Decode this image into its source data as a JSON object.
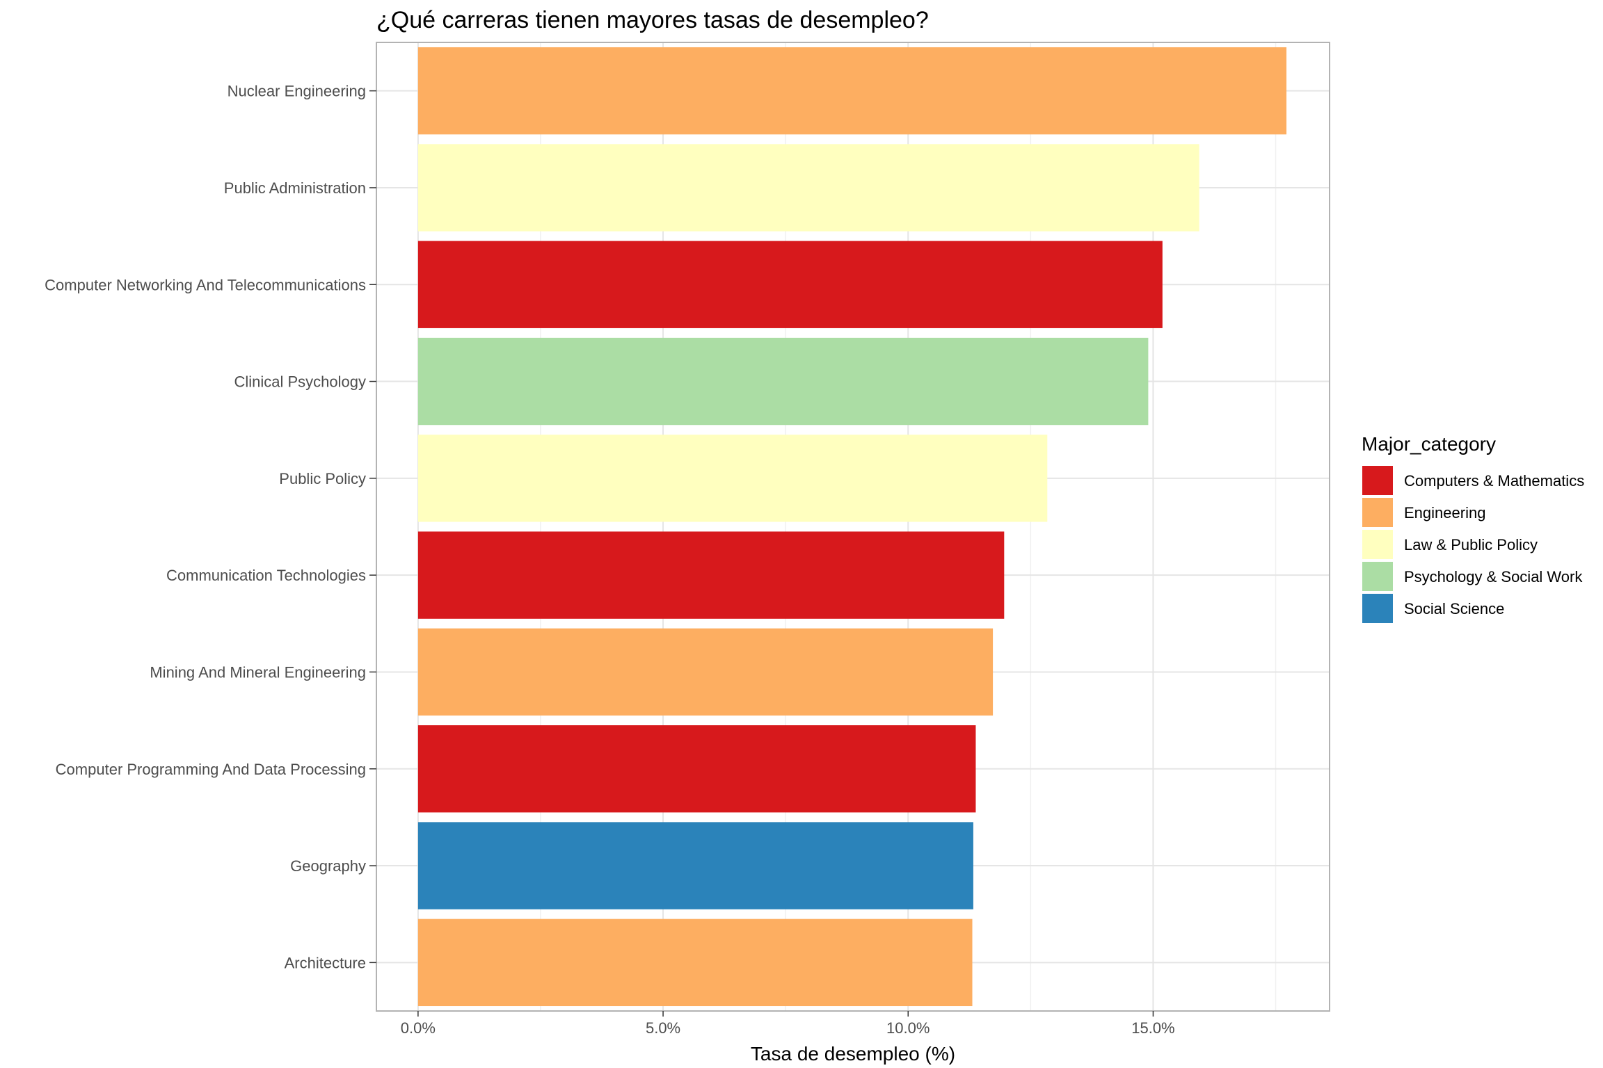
{
  "chart_data": {
    "type": "bar",
    "orientation": "horizontal",
    "title": "¿Qué carreras tienen mayores  tasas de desempleo?",
    "xlabel": "Tasa de desempleo  (%)",
    "ylabel": "",
    "xlim": [
      -0.0085,
      0.186
    ],
    "x_ticks": [
      {
        "value": 0.0,
        "label": "0.0%"
      },
      {
        "value": 0.05,
        "label": "5.0%"
      },
      {
        "value": 0.1,
        "label": "10.0%"
      },
      {
        "value": 0.15,
        "label": "15.0%"
      }
    ],
    "grid": true,
    "legend": {
      "title": "Major_category",
      "placement": "right",
      "items": [
        {
          "label": "Computers & Mathematics",
          "color": "#d7191c"
        },
        {
          "label": "Engineering",
          "color": "#fdae61"
        },
        {
          "label": "Law & Public Policy",
          "color": "#ffffbf"
        },
        {
          "label": "Psychology & Social Work",
          "color": "#abdda4"
        },
        {
          "label": "Social Science",
          "color": "#2b83ba"
        }
      ]
    },
    "bars": [
      {
        "category": "Nuclear Engineering",
        "value": 0.1772,
        "group": "Engineering"
      },
      {
        "category": "Public Administration",
        "value": 0.1594,
        "group": "Law & Public Policy"
      },
      {
        "category": "Computer Networking And Telecommunications",
        "value": 0.1519,
        "group": "Computers & Mathematics"
      },
      {
        "category": "Clinical Psychology",
        "value": 0.149,
        "group": "Psychology & Social Work"
      },
      {
        "category": "Public Policy",
        "value": 0.1284,
        "group": "Law & Public Policy"
      },
      {
        "category": "Communication Technologies",
        "value": 0.1196,
        "group": "Computers & Mathematics"
      },
      {
        "category": "Mining And Mineral Engineering",
        "value": 0.1173,
        "group": "Engineering"
      },
      {
        "category": "Computer Programming And Data Processing",
        "value": 0.1138,
        "group": "Computers & Mathematics"
      },
      {
        "category": "Geography",
        "value": 0.1133,
        "group": "Social Science"
      },
      {
        "category": "Architecture",
        "value": 0.1131,
        "group": "Engineering"
      }
    ]
  }
}
